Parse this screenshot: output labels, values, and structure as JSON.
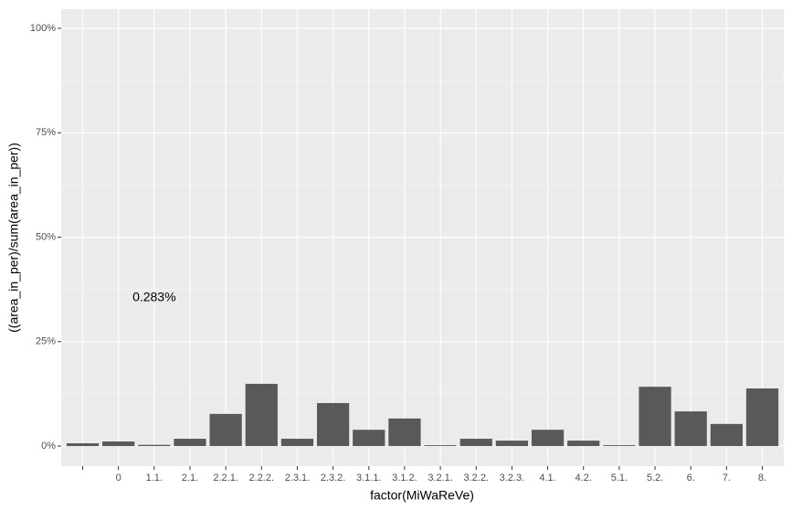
{
  "chart_data": {
    "type": "bar",
    "categories": [
      null,
      "0",
      "1.1.",
      "2.1.",
      "2.2.1.",
      "2.2.2.",
      "2.3.1.",
      "2.3.2.",
      "3.1.1.",
      "3.1.2.",
      "3.2.1.",
      "3.2.2.",
      "3.2.3.",
      "4.1.",
      "4.2.",
      "5.1.",
      "5.2.",
      "6.",
      "7.",
      "8."
    ],
    "values": [
      0.66,
      1.1,
      0.3,
      1.75,
      7.7,
      14.9,
      1.75,
      10.3,
      3.9,
      6.6,
      0.2,
      1.75,
      1.3,
      3.9,
      1.3,
      0.2,
      14.2,
      8.3,
      5.3,
      13.8
    ],
    "color": "#595959",
    "x_label": "factor(MiWaReVe)",
    "y_label": "((area_in_per)/sum(area_in_per))",
    "annotation": "0.283%",
    "ylim": [
      -4.8,
      104.6
    ],
    "yticks": [
      {
        "value": 0,
        "label": "0%"
      },
      {
        "value": 25,
        "label": "25%"
      },
      {
        "value": 50,
        "label": "50%"
      },
      {
        "value": 75,
        "label": "75%"
      },
      {
        "value": 100,
        "label": "100%"
      }
    ],
    "grid": true
  }
}
